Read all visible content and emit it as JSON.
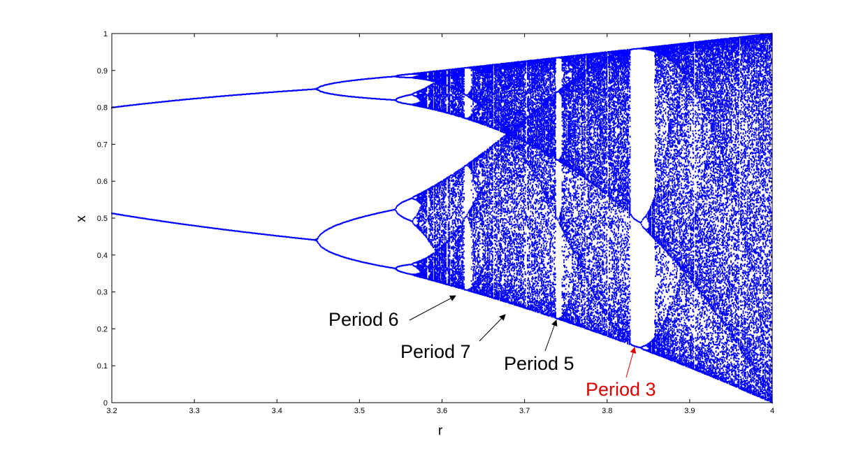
{
  "chart_data": {
    "type": "scatter",
    "title": "",
    "xlabel": "r",
    "ylabel": "x",
    "xlim": [
      3.2,
      4.0
    ],
    "ylim": [
      0,
      1
    ],
    "xticks": [
      "3.2",
      "3.3",
      "3.4",
      "3.5",
      "3.6",
      "3.7",
      "3.8",
      "3.9",
      "4"
    ],
    "yticks": [
      "0",
      "0.1",
      "0.2",
      "0.3",
      "0.4",
      "0.5",
      "0.6",
      "0.7",
      "0.8",
      "0.9",
      "1"
    ],
    "grid": false,
    "legend": "none",
    "series_color": "#0000ff",
    "map": {
      "r_min": 3.2,
      "r_max": 4.0,
      "r_samples": 800,
      "transient_iterations": 400,
      "plotted_iterations": 150
    },
    "annotations": [
      {
        "text": "Period 6",
        "color": "#000000",
        "target": {
          "r": 3.628,
          "x": 0.288
        }
      },
      {
        "text": "Period 7",
        "color": "#000000",
        "target": {
          "r": 3.702,
          "x": 0.238
        }
      },
      {
        "text": "Period 5",
        "color": "#000000",
        "target": {
          "r": 3.74,
          "x": 0.222
        }
      },
      {
        "text": "Period 3",
        "color": "#dd0000",
        "target": {
          "r": 3.828,
          "x": 0.15
        }
      }
    ]
  }
}
